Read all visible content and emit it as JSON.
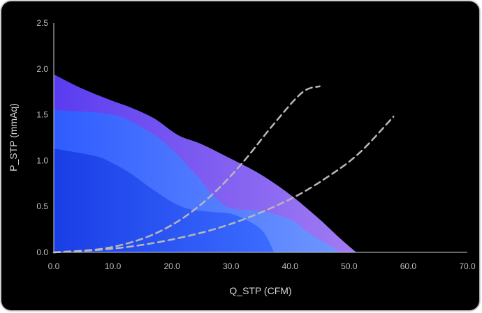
{
  "chart_data": {
    "type": "area",
    "xlabel": "Q_STP (CFM)",
    "ylabel": "P_STP (mmAq)",
    "xlim": [
      0,
      70
    ],
    "ylim": [
      0,
      2.5
    ],
    "x_ticks": [
      "0.0",
      "10.0",
      "20.0",
      "30.0",
      "40.0",
      "50.0",
      "60.0",
      "70.0"
    ],
    "y_ticks": [
      "0.0",
      "0.5",
      "1.0",
      "1.5",
      "2.0",
      "2.5"
    ],
    "grid": false,
    "legend": "none",
    "series": [
      {
        "kind": "area",
        "color": "#8a5cf5",
        "points": [
          [
            0,
            1.94
          ],
          [
            5,
            1.78
          ],
          [
            10,
            1.65
          ],
          [
            13,
            1.58
          ],
          [
            17,
            1.46
          ],
          [
            21,
            1.28
          ],
          [
            25,
            1.18
          ],
          [
            30,
            1.02
          ],
          [
            35,
            0.85
          ],
          [
            40,
            0.63
          ],
          [
            45,
            0.36
          ],
          [
            48.5,
            0.15
          ],
          [
            51.2,
            0.0
          ]
        ]
      },
      {
        "kind": "area",
        "color": "#4a7dff",
        "points": [
          [
            0,
            1.55
          ],
          [
            8,
            1.52
          ],
          [
            12,
            1.46
          ],
          [
            17,
            1.28
          ],
          [
            20,
            1.12
          ],
          [
            24,
            0.85
          ],
          [
            27,
            0.62
          ],
          [
            30,
            0.48
          ],
          [
            35,
            0.45
          ],
          [
            40,
            0.36
          ],
          [
            43,
            0.22
          ],
          [
            46,
            0.1
          ],
          [
            48.5,
            0.0
          ]
        ]
      },
      {
        "kind": "area",
        "color": "#2a50f0",
        "points": [
          [
            0,
            1.13
          ],
          [
            7,
            1.05
          ],
          [
            10,
            0.97
          ],
          [
            13,
            0.86
          ],
          [
            16,
            0.72
          ],
          [
            20,
            0.55
          ],
          [
            23,
            0.47
          ],
          [
            27,
            0.44
          ],
          [
            30,
            0.42
          ],
          [
            33,
            0.34
          ],
          [
            35.5,
            0.22
          ],
          [
            37.3,
            0.0
          ]
        ]
      },
      {
        "kind": "dashed-line",
        "color": "#b8b8b8",
        "points": [
          [
            0,
            0.0
          ],
          [
            7,
            0.03
          ],
          [
            12,
            0.09
          ],
          [
            17,
            0.2
          ],
          [
            22,
            0.38
          ],
          [
            27,
            0.64
          ],
          [
            32,
            0.98
          ],
          [
            37,
            1.38
          ],
          [
            42,
            1.74
          ],
          [
            45,
            1.81
          ]
        ]
      },
      {
        "kind": "dashed-line",
        "color": "#b8b8b8",
        "points": [
          [
            0,
            0.0
          ],
          [
            10,
            0.04
          ],
          [
            20,
            0.14
          ],
          [
            30,
            0.31
          ],
          [
            40,
            0.58
          ],
          [
            47,
            0.85
          ],
          [
            52,
            1.1
          ],
          [
            57.5,
            1.48
          ]
        ]
      }
    ]
  }
}
